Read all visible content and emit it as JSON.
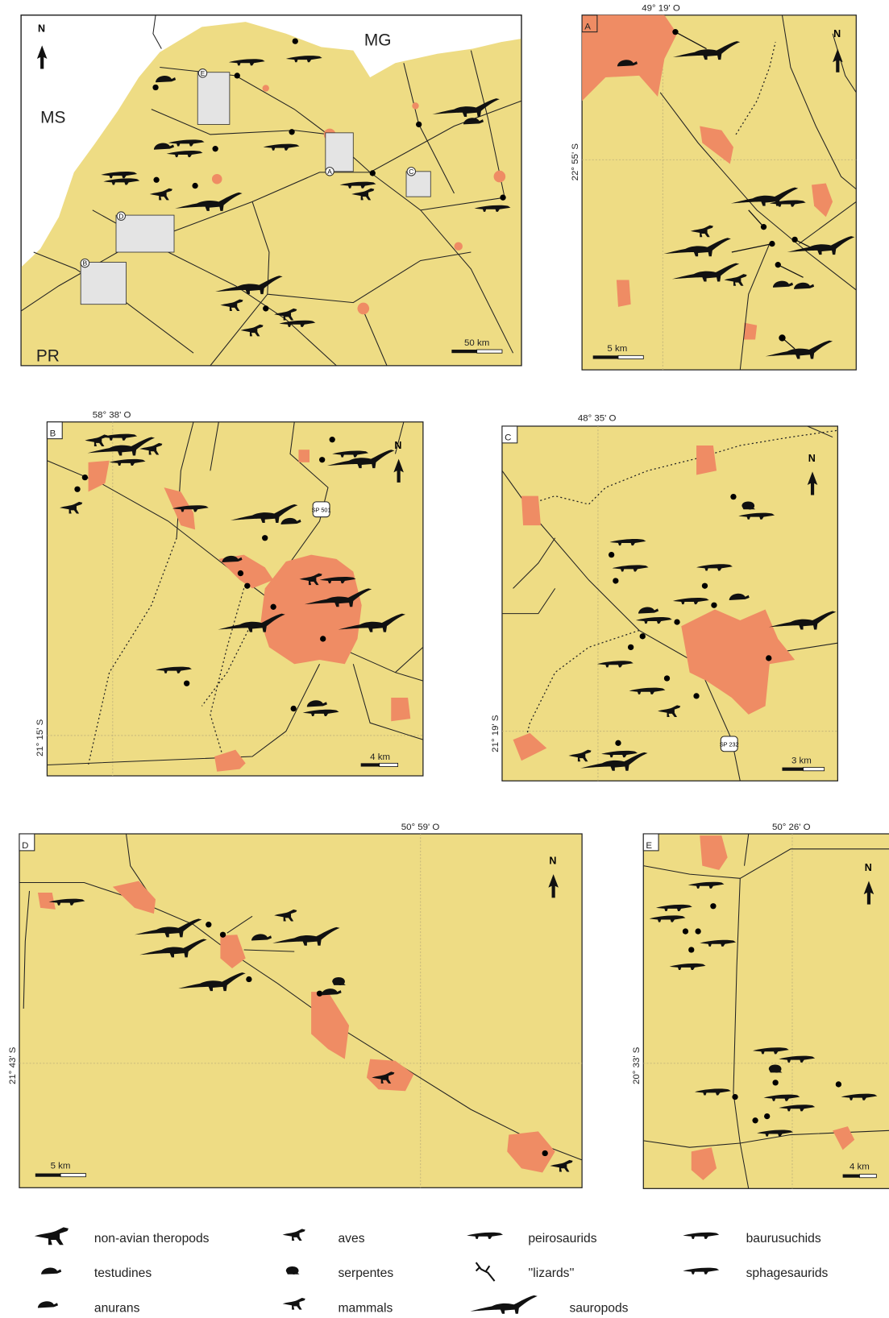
{
  "main_map": {
    "regions": [
      "MS",
      "MG",
      "PR"
    ],
    "north": "N",
    "scale": "50 km",
    "insets": [
      "A",
      "B",
      "C",
      "D",
      "E"
    ]
  },
  "panels": [
    {
      "letter": "A",
      "lon": "49° 19' O",
      "lat": "22° 55' S",
      "scale": "5 km",
      "north": "N"
    },
    {
      "letter": "B",
      "lon": "58° 38' O",
      "lat": "21° 15' S",
      "scale": "4 km",
      "north": "N",
      "road": "SP 501"
    },
    {
      "letter": "C",
      "lon": "48° 35' O",
      "lat": "21° 19' S",
      "scale": "3 km",
      "north": "N",
      "road": "SP 232"
    },
    {
      "letter": "D",
      "lon": "50° 59' O",
      "lat": "21° 43' S",
      "scale": "5 km",
      "north": "N"
    },
    {
      "letter": "E",
      "lon": "50° 26' O",
      "lat": "20° 33' S",
      "scale": "4 km",
      "north": "N"
    }
  ],
  "legend": [
    "non-avian theropods",
    "aves",
    "peirosaurids",
    "baurusuchids",
    "testudines",
    "serpentes",
    "''lizards''",
    "sphagesaurids",
    "anurans",
    "mammals",
    "sauropods"
  ]
}
